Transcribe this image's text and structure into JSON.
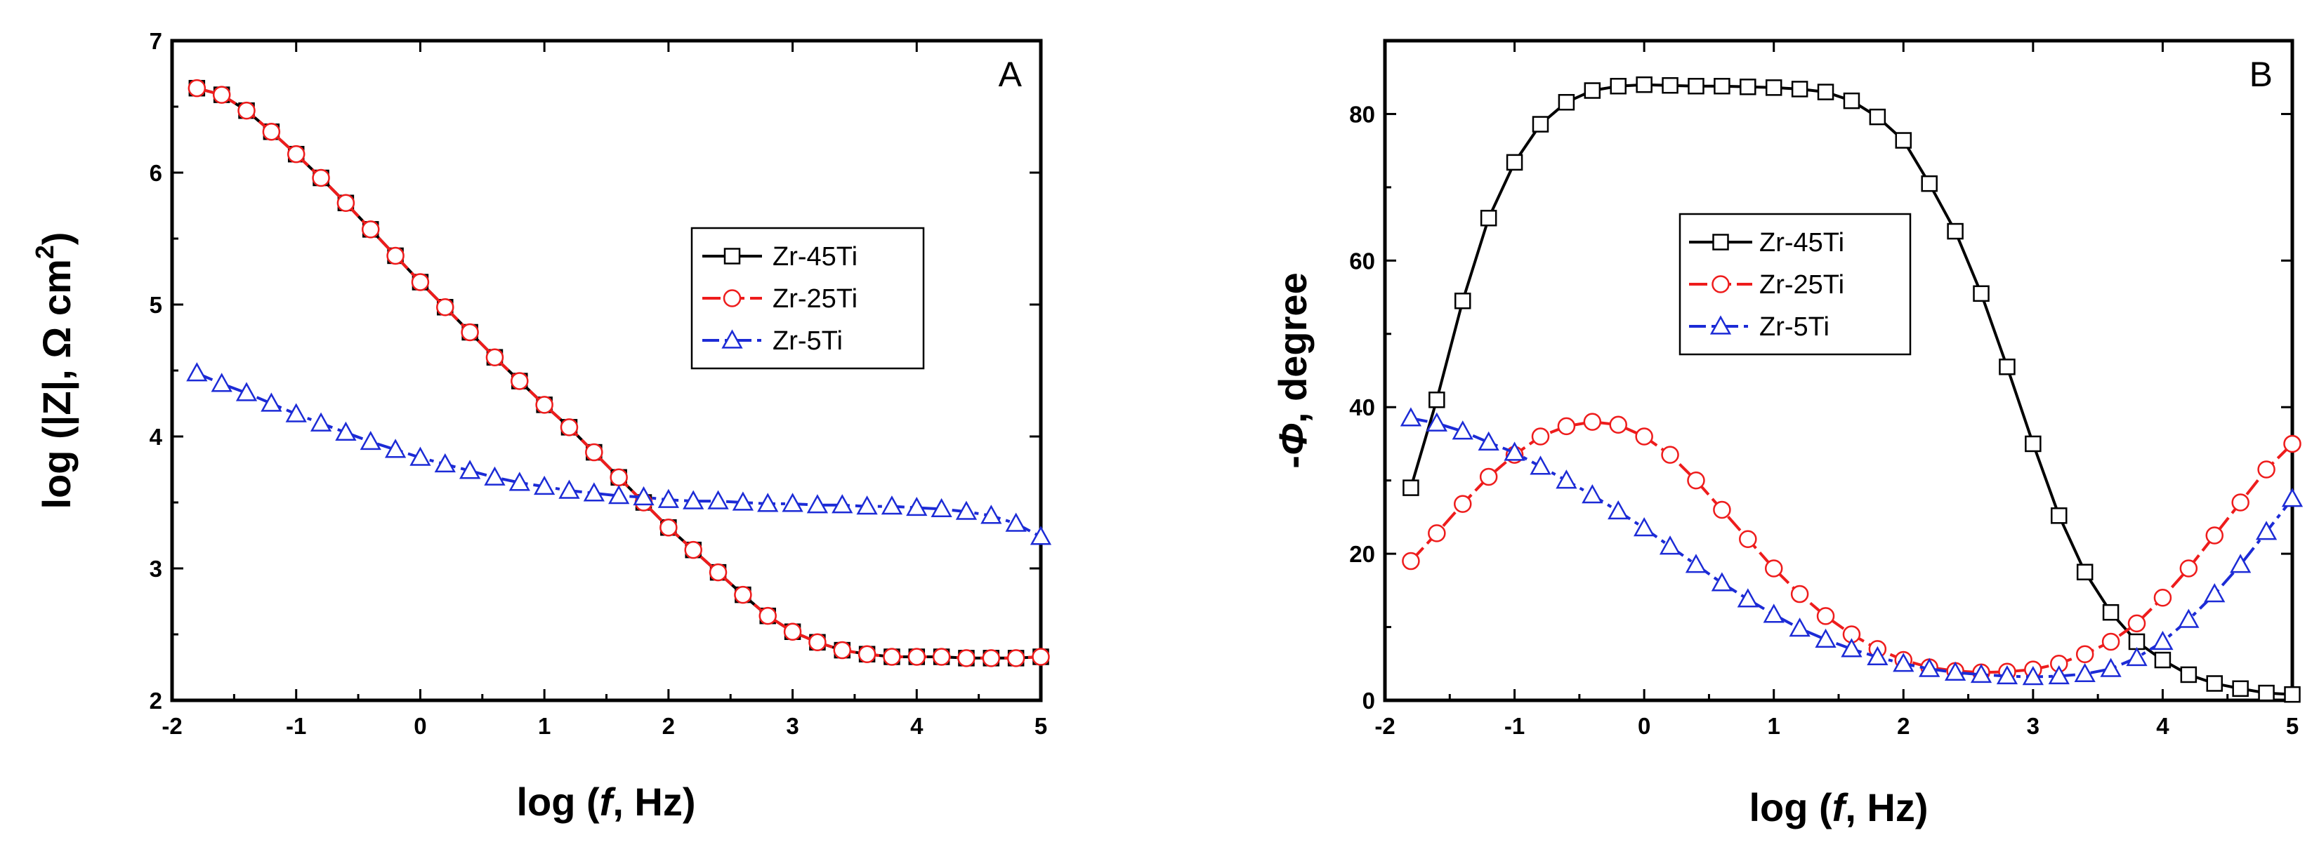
{
  "chart_data": [
    {
      "type": "line",
      "panel_label": "A",
      "xlabel_prefix": "log (",
      "xlabel_var": "f",
      "xlabel_suffix": ", Hz)",
      "ylabel_prefix": "log (|Z|, Ω cm",
      "ylabel_sup": "2",
      "ylabel_suffix": ")",
      "xlim": [
        -2,
        5
      ],
      "ylim": [
        2,
        7
      ],
      "xticks": [
        -2,
        -1,
        0,
        1,
        2,
        3,
        4,
        5
      ],
      "yticks": [
        2,
        3,
        4,
        5,
        6,
        7
      ],
      "legend_position": "center-right",
      "series": [
        {
          "name": "Zr-45Ti",
          "color": "#000000",
          "marker": "square",
          "dash": "solid",
          "x": [
            -1.8,
            -1.6,
            -1.4,
            -1.2,
            -1.0,
            -0.8,
            -0.6,
            -0.4,
            -0.2,
            0.0,
            0.2,
            0.4,
            0.6,
            0.8,
            1.0,
            1.2,
            1.4,
            1.6,
            1.8,
            2.0,
            2.2,
            2.4,
            2.6,
            2.8,
            3.0,
            3.2,
            3.4,
            3.6,
            3.8,
            4.0,
            4.2,
            4.4,
            4.6,
            4.8,
            5.0
          ],
          "y": [
            6.64,
            6.59,
            6.47,
            6.31,
            6.14,
            5.96,
            5.77,
            5.57,
            5.37,
            5.17,
            4.98,
            4.79,
            4.6,
            4.42,
            4.24,
            4.07,
            3.88,
            3.69,
            3.5,
            3.31,
            3.14,
            2.97,
            2.8,
            2.64,
            2.52,
            2.44,
            2.38,
            2.35,
            2.33,
            2.33,
            2.33,
            2.32,
            2.32,
            2.32,
            2.33
          ]
        },
        {
          "name": "Zr-25Ti",
          "color": "#ee1c1c",
          "marker": "circle",
          "dash": "dash",
          "x": [
            -1.8,
            -1.6,
            -1.4,
            -1.2,
            -1.0,
            -0.8,
            -0.6,
            -0.4,
            -0.2,
            0.0,
            0.2,
            0.4,
            0.6,
            0.8,
            1.0,
            1.2,
            1.4,
            1.6,
            1.8,
            2.0,
            2.2,
            2.4,
            2.6,
            2.8,
            3.0,
            3.2,
            3.4,
            3.6,
            3.8,
            4.0,
            4.2,
            4.4,
            4.6,
            4.8,
            5.0
          ],
          "y": [
            6.64,
            6.59,
            6.47,
            6.31,
            6.14,
            5.96,
            5.77,
            5.57,
            5.37,
            5.17,
            4.98,
            4.79,
            4.6,
            4.42,
            4.24,
            4.07,
            3.88,
            3.69,
            3.5,
            3.31,
            3.14,
            2.97,
            2.8,
            2.64,
            2.52,
            2.44,
            2.38,
            2.35,
            2.33,
            2.33,
            2.33,
            2.32,
            2.32,
            2.32,
            2.33
          ]
        },
        {
          "name": "Zr-5Ti",
          "color": "#1c2bd6",
          "marker": "triangle",
          "dash": "dashdot",
          "x": [
            -1.8,
            -1.6,
            -1.4,
            -1.2,
            -1.0,
            -0.8,
            -0.6,
            -0.4,
            -0.2,
            0.0,
            0.2,
            0.4,
            0.6,
            0.8,
            1.0,
            1.2,
            1.4,
            1.6,
            1.8,
            2.0,
            2.2,
            2.4,
            2.6,
            2.8,
            3.0,
            3.2,
            3.4,
            3.6,
            3.8,
            4.0,
            4.2,
            4.4,
            4.6,
            4.8,
            5.0
          ],
          "y": [
            4.48,
            4.4,
            4.33,
            4.25,
            4.17,
            4.1,
            4.03,
            3.96,
            3.9,
            3.84,
            3.79,
            3.74,
            3.69,
            3.65,
            3.62,
            3.59,
            3.57,
            3.55,
            3.54,
            3.52,
            3.51,
            3.51,
            3.5,
            3.49,
            3.49,
            3.48,
            3.48,
            3.47,
            3.47,
            3.46,
            3.45,
            3.43,
            3.4,
            3.34,
            3.24
          ]
        }
      ]
    },
    {
      "type": "line",
      "panel_label": "B",
      "xlabel_prefix": "log (",
      "xlabel_var": "f",
      "xlabel_suffix": ", Hz)",
      "ylabel_prefix": "-",
      "ylabel_var": "Φ",
      "ylabel_suffix": ", degree",
      "xlim": [
        -2,
        5
      ],
      "ylim": [
        0,
        90
      ],
      "xticks": [
        -2,
        -1,
        0,
        1,
        2,
        3,
        4,
        5
      ],
      "yticks": [
        0,
        20,
        40,
        60,
        80
      ],
      "legend_position": "center",
      "series": [
        {
          "name": "Zr-45Ti",
          "color": "#000000",
          "marker": "square",
          "dash": "solid",
          "x": [
            -1.8,
            -1.6,
            -1.4,
            -1.2,
            -1.0,
            -0.8,
            -0.6,
            -0.4,
            -0.2,
            0.0,
            0.2,
            0.4,
            0.6,
            0.8,
            1.0,
            1.2,
            1.4,
            1.6,
            1.8,
            2.0,
            2.2,
            2.4,
            2.6,
            2.8,
            3.0,
            3.2,
            3.4,
            3.6,
            3.8,
            4.0,
            4.2,
            4.4,
            4.6,
            4.8,
            5.0
          ],
          "y": [
            29,
            41,
            54.5,
            65.8,
            73.4,
            78.6,
            81.6,
            83.2,
            83.8,
            84.0,
            83.9,
            83.8,
            83.8,
            83.7,
            83.6,
            83.4,
            83.0,
            81.8,
            79.6,
            76.4,
            70.5,
            64.0,
            55.5,
            45.5,
            35.0,
            25.2,
            17.5,
            12.0,
            8.0,
            5.5,
            3.5,
            2.3,
            1.6,
            1.0,
            0.8
          ]
        },
        {
          "name": "Zr-25Ti",
          "color": "#ee1c1c",
          "marker": "circle",
          "dash": "dash",
          "x": [
            -1.8,
            -1.6,
            -1.4,
            -1.2,
            -1.0,
            -0.8,
            -0.6,
            -0.4,
            -0.2,
            0.0,
            0.2,
            0.4,
            0.6,
            0.8,
            1.0,
            1.2,
            1.4,
            1.6,
            1.8,
            2.0,
            2.2,
            2.4,
            2.6,
            2.8,
            3.0,
            3.2,
            3.4,
            3.6,
            3.8,
            4.0,
            4.2,
            4.4,
            4.6,
            4.8,
            5.0
          ],
          "y": [
            19.0,
            22.8,
            26.8,
            30.5,
            33.5,
            36.0,
            37.4,
            38.0,
            37.6,
            36.0,
            33.5,
            30.0,
            26.0,
            22.0,
            18.0,
            14.5,
            11.5,
            9.0,
            7.0,
            5.5,
            4.5,
            4.0,
            3.8,
            3.9,
            4.2,
            5.0,
            6.3,
            8.0,
            10.5,
            14.0,
            18.0,
            22.5,
            27.0,
            31.5,
            35.0
          ]
        },
        {
          "name": "Zr-5Ti",
          "color": "#1c2bd6",
          "marker": "triangle",
          "dash": "dashdot",
          "x": [
            -1.8,
            -1.6,
            -1.4,
            -1.2,
            -1.0,
            -0.8,
            -0.6,
            -0.4,
            -0.2,
            0.0,
            0.2,
            0.4,
            0.6,
            0.8,
            1.0,
            1.2,
            1.4,
            1.6,
            1.8,
            2.0,
            2.2,
            2.4,
            2.6,
            2.8,
            3.0,
            3.2,
            3.4,
            3.6,
            3.8,
            4.0,
            4.2,
            4.4,
            4.6,
            4.8,
            5.0
          ],
          "y": [
            38.5,
            37.8,
            36.7,
            35.2,
            33.8,
            31.9,
            30.0,
            28.0,
            25.8,
            23.5,
            21.0,
            18.5,
            16.0,
            13.8,
            11.7,
            9.8,
            8.3,
            7.0,
            5.9,
            5.0,
            4.3,
            3.8,
            3.5,
            3.3,
            3.2,
            3.3,
            3.6,
            4.3,
            5.8,
            8.0,
            11.0,
            14.5,
            18.5,
            23.0,
            27.5
          ]
        }
      ]
    }
  ]
}
